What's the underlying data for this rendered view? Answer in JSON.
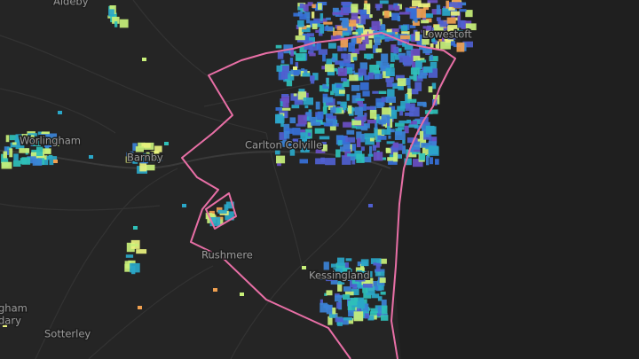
{
  "places": {
    "aldeby": "Aldeby",
    "lowestoft": "Lowestoft",
    "carlton_colville": "Carlton Colville",
    "worlingham": "Worlingham",
    "barnby": "Barnby",
    "rushmere": "Rushmere",
    "kessingland": "Kessingland",
    "cut_upper": "gham",
    "cut_lower": "dary",
    "sotterley": "Sotterley"
  }
}
